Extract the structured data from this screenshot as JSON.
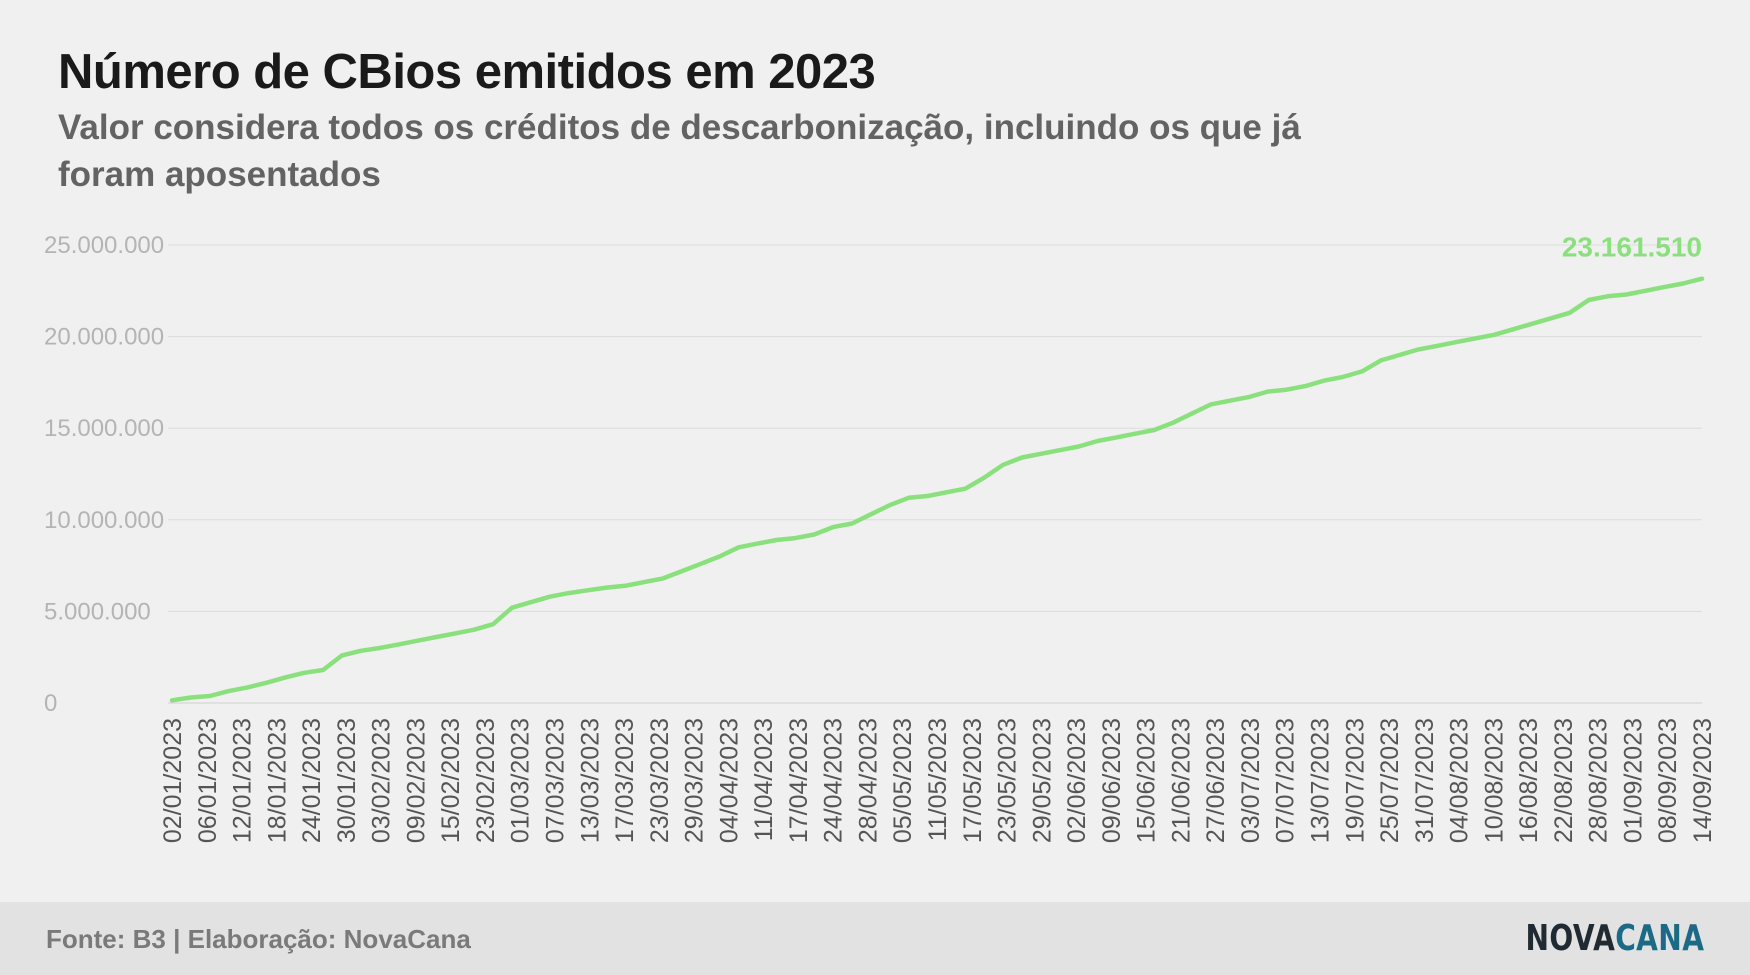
{
  "header": {
    "title": "Número de CBios emitidos em 2023",
    "subtitle": "Valor considera todos os créditos de descarbonização, incluindo os que já foram aposentados"
  },
  "footer": {
    "source": "Fonte: B3 | Elaboração: NovaCana",
    "logo_part1": "NOVA",
    "logo_part2": "CANA"
  },
  "colors": {
    "line": "#8be07e",
    "grid": "#dcdcdc",
    "tick": "#b4b4b4",
    "xtick": "#555555",
    "logo_dark": "#1f2a32",
    "logo_blue": "#1d6a86"
  },
  "chart_data": {
    "type": "line",
    "x_tick_labels": [
      "02/01/2023",
      "06/01/2023",
      "12/01/2023",
      "18/01/2023",
      "24/01/2023",
      "30/01/2023",
      "03/02/2023",
      "09/02/2023",
      "15/02/2023",
      "23/02/2023",
      "01/03/2023",
      "07/03/2023",
      "13/03/2023",
      "17/03/2023",
      "23/03/2023",
      "29/03/2023",
      "04/04/2023",
      "11/04/2023",
      "17/04/2023",
      "24/04/2023",
      "28/04/2023",
      "05/05/2023",
      "11/05/2023",
      "17/05/2023",
      "23/05/2023",
      "29/05/2023",
      "02/06/2023",
      "09/06/2023",
      "15/06/2023",
      "21/06/2023",
      "27/06/2023",
      "03/07/2023",
      "07/07/2023",
      "13/07/2023",
      "19/07/2023",
      "25/07/2023",
      "31/07/2023",
      "04/08/2023",
      "10/08/2023",
      "16/08/2023",
      "22/08/2023",
      "28/08/2023",
      "01/09/2023",
      "08/09/2023",
      "14/09/2023"
    ],
    "y_tick_labels": [
      "0",
      "5.000.000",
      "10.000.000",
      "15.000.000",
      "20.000.000",
      "25.000.000"
    ],
    "y_ticks": [
      0,
      5000000,
      10000000,
      15000000,
      20000000,
      25000000
    ],
    "ylim": [
      0,
      25000000
    ],
    "series": [
      {
        "values": [
          150000,
          300000,
          380000,
          650000,
          850000,
          1100000,
          1400000,
          1650000,
          1800000,
          2600000,
          2850000,
          3000000,
          3200000,
          3400000,
          3600000,
          3800000,
          4000000,
          4300000,
          5200000,
          5500000,
          5800000,
          6000000,
          6150000,
          6300000,
          6400000,
          6600000,
          6800000,
          7200000,
          7600000,
          8000000,
          8500000,
          8700000,
          8900000,
          9000000,
          9200000,
          9600000,
          9800000,
          10300000,
          10800000,
          11200000,
          11300000,
          11500000,
          11700000,
          12300000,
          13000000,
          13400000,
          13600000,
          13800000,
          14000000,
          14300000,
          14500000,
          14700000,
          14900000,
          15300000,
          15800000,
          16300000,
          16500000,
          16700000,
          17000000,
          17100000,
          17300000,
          17600000,
          17800000,
          18100000,
          18700000,
          19000000,
          19300000,
          19500000,
          19700000,
          19900000,
          20100000,
          20400000,
          20700000,
          21000000,
          21300000,
          22000000,
          22200000,
          22300000,
          22500000,
          22700000,
          22900000,
          23161510
        ]
      }
    ],
    "last_value_label": "23.161.510",
    "grid": true,
    "legend": "none"
  }
}
